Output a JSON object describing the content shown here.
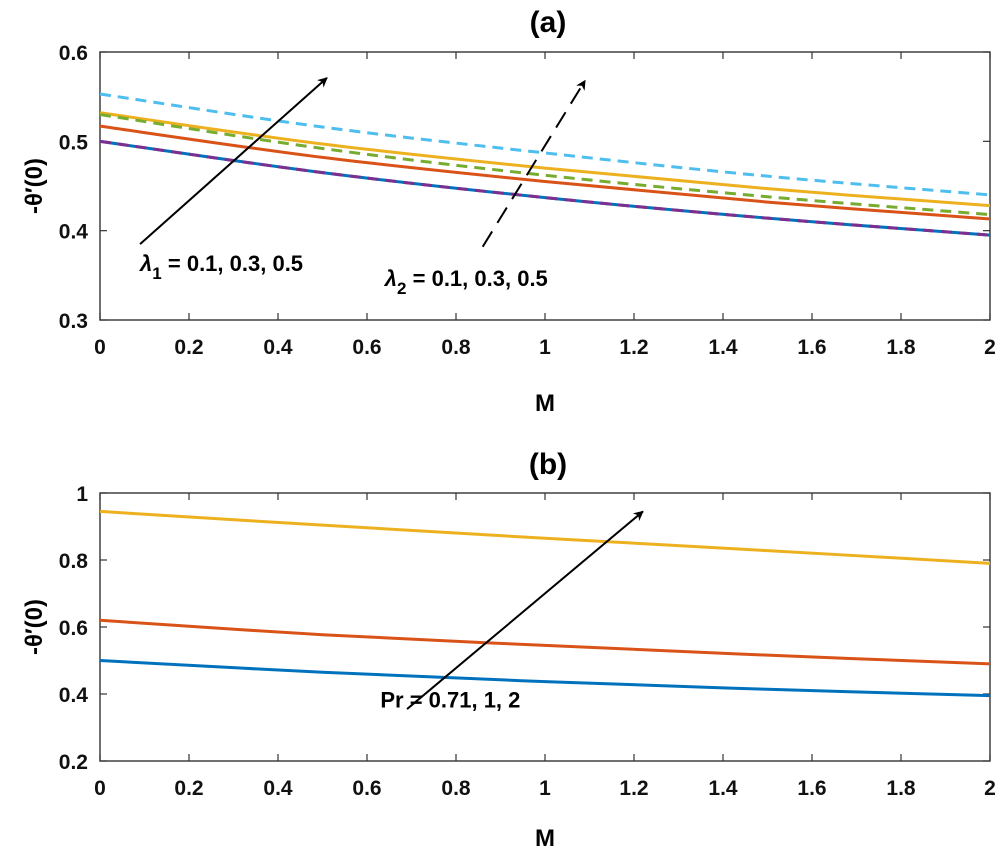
{
  "chart_data": [
    {
      "panel": "a",
      "type": "line",
      "title": "(a)",
      "xlabel": "M",
      "ylabel": "-θ′(0)",
      "xlim": [
        0,
        2
      ],
      "ylim": [
        0.3,
        0.6
      ],
      "xticks": [
        "0",
        "0.2",
        "0.4",
        "0.6",
        "0.8",
        "1",
        "1.2",
        "1.4",
        "1.6",
        "1.8",
        "2"
      ],
      "yticks": [
        "0.3",
        "0.4",
        "0.5",
        "0.6"
      ],
      "x": [
        0,
        0.5,
        1,
        1.5,
        2
      ],
      "series": [
        {
          "name": "λ1 = 0.1",
          "color": "#0072BD",
          "dash": "solid",
          "values": [
            0.5,
            0.465,
            0.437,
            0.414,
            0.395
          ]
        },
        {
          "name": "λ1 = 0.3",
          "color": "#D95319",
          "dash": "solid",
          "values": [
            0.517,
            0.482,
            0.455,
            0.432,
            0.413
          ]
        },
        {
          "name": "λ1 = 0.5",
          "color": "#EDB120",
          "dash": "solid",
          "values": [
            0.532,
            0.497,
            0.47,
            0.447,
            0.428
          ]
        },
        {
          "name": "λ2 = 0.1",
          "color": "#7E2F8E",
          "dash": "dashed",
          "values": [
            0.5,
            0.465,
            0.437,
            0.414,
            0.395
          ]
        },
        {
          "name": "λ2 = 0.3",
          "color": "#77AC30",
          "dash": "dashed",
          "values": [
            0.53,
            0.492,
            0.462,
            0.438,
            0.418
          ]
        },
        {
          "name": "λ2 = 0.5",
          "color": "#4DBEEE",
          "dash": "dashed",
          "values": [
            0.553,
            0.516,
            0.487,
            0.461,
            0.44
          ]
        }
      ],
      "annotations": [
        {
          "text_main": "λ",
          "text_sub": "1",
          "text_rest": " = 0.1, 0.3, 0.5",
          "arrow": "solid",
          "from": [
            0.09,
            0.385
          ],
          "to": [
            0.51,
            0.571
          ],
          "label_at": [
            0.09,
            0.355
          ]
        },
        {
          "text_main": "λ",
          "text_sub": "2",
          "text_rest": " = 0.1, 0.3, 0.5",
          "arrow": "dashed",
          "from": [
            0.86,
            0.382
          ],
          "to": [
            1.09,
            0.568
          ],
          "label_at": [
            0.64,
            0.338
          ]
        }
      ]
    },
    {
      "panel": "b",
      "type": "line",
      "title": "(b)",
      "xlabel": "M",
      "ylabel": "-θ′(0)",
      "xlim": [
        0,
        2
      ],
      "ylim": [
        0.2,
        1.0
      ],
      "xticks": [
        "0",
        "0.2",
        "0.4",
        "0.6",
        "0.8",
        "1",
        "1.2",
        "1.4",
        "1.6",
        "1.8",
        "2"
      ],
      "yticks": [
        "0.2",
        "0.4",
        "0.6",
        "0.8",
        "1"
      ],
      "x": [
        0,
        0.5,
        1,
        1.5,
        2
      ],
      "series": [
        {
          "name": "Pr = 0.71",
          "color": "#0072BD",
          "dash": "solid",
          "values": [
            0.5,
            0.465,
            0.437,
            0.414,
            0.395
          ]
        },
        {
          "name": "Pr = 1",
          "color": "#D95319",
          "dash": "solid",
          "values": [
            0.62,
            0.577,
            0.545,
            0.516,
            0.49
          ]
        },
        {
          "name": "Pr = 2",
          "color": "#EDB120",
          "dash": "solid",
          "values": [
            0.945,
            0.904,
            0.865,
            0.828,
            0.79
          ]
        }
      ],
      "annotations": [
        {
          "text_main": "Pr = 0.71, 1, 2",
          "text_sub": "",
          "text_rest": "",
          "arrow": "solid",
          "from": [
            0.69,
            0.355
          ],
          "to": [
            1.22,
            0.945
          ],
          "label_at": [
            0.63,
            0.36
          ]
        }
      ]
    }
  ]
}
